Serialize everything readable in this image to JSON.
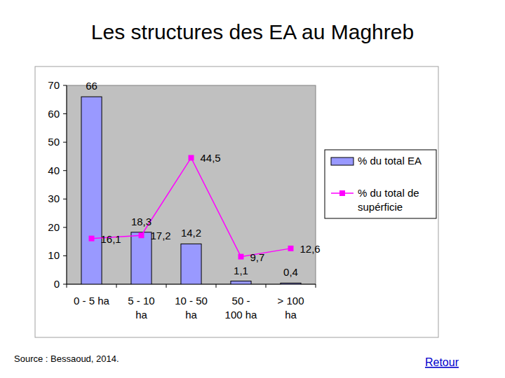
{
  "chart_data": {
    "type": "bar",
    "title": "Les structures des EA au Maghreb",
    "categories": [
      "0 - 5 ha",
      "5 - 10 ha",
      "10 - 50 ha",
      "50 - 100 ha",
      "> 100 ha"
    ],
    "series": [
      {
        "name": "% du total EA",
        "type": "bar",
        "color": "#9999ff",
        "values": [
          66,
          18.3,
          14.2,
          1.1,
          0.4
        ],
        "value_labels": [
          "66",
          "18,3",
          "14,2",
          "1,1",
          "0,4"
        ]
      },
      {
        "name": "% du total de supérficie",
        "type": "line",
        "color": "#ff00ff",
        "marker": "square",
        "values": [
          16.1,
          17.2,
          44.5,
          9.7,
          12.6
        ],
        "value_labels": [
          "16,1",
          "17,2",
          "44,5",
          "9,7",
          "12,6"
        ]
      }
    ],
    "ylim": [
      0,
      70
    ],
    "yticks": [
      0,
      10,
      20,
      30,
      40,
      50,
      60,
      70
    ],
    "grid": false,
    "legend": "right",
    "data_labels": true
  },
  "footer": {
    "source": "Source : Bessaoud, 2014.",
    "link": "Retour"
  }
}
